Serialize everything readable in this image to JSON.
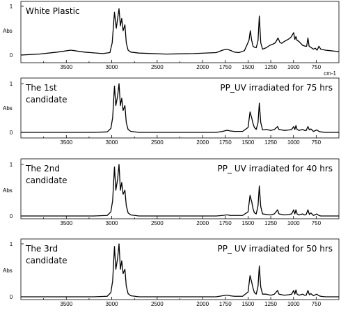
{
  "chart_data": [
    {
      "type": "line",
      "title_lines": [
        "White Plastic"
      ],
      "annotation": "",
      "ylabel": "Abs",
      "yticks": [
        "0",
        "1"
      ],
      "xticks": [
        3500,
        3000,
        2500,
        2000,
        1750,
        1500,
        1250,
        1000,
        750
      ],
      "xunit": "cm-1",
      "xlim": [
        4000,
        500
      ],
      "ylim": [
        0,
        1
      ],
      "x": [
        4000,
        3800,
        3600,
        3450,
        3300,
        3100,
        3020,
        2995,
        2970,
        2950,
        2935,
        2920,
        2905,
        2890,
        2875,
        2855,
        2840,
        2820,
        2790,
        2700,
        2400,
        2100,
        1850,
        1780,
        1735,
        1700,
        1650,
        1600,
        1540,
        1490,
        1475,
        1460,
        1445,
        1430,
        1410,
        1390,
        1376,
        1360,
        1340,
        1300,
        1260,
        1230,
        1200,
        1170,
        1150,
        1130,
        1100,
        1060,
        1030,
        1010,
        998,
        985,
        973,
        960,
        940,
        900,
        870,
        855,
        841,
        828,
        810,
        780,
        760,
        740,
        720,
        700,
        650,
        600,
        550,
        500
      ],
      "y": [
        0.0,
        0.02,
        0.06,
        0.1,
        0.06,
        0.03,
        0.05,
        0.25,
        0.88,
        0.55,
        0.75,
        0.95,
        0.6,
        0.75,
        0.5,
        0.62,
        0.25,
        0.1,
        0.06,
        0.04,
        0.02,
        0.03,
        0.05,
        0.1,
        0.12,
        0.1,
        0.06,
        0.05,
        0.09,
        0.3,
        0.5,
        0.3,
        0.18,
        0.16,
        0.15,
        0.3,
        0.8,
        0.25,
        0.12,
        0.15,
        0.2,
        0.22,
        0.25,
        0.35,
        0.26,
        0.24,
        0.28,
        0.32,
        0.36,
        0.42,
        0.46,
        0.32,
        0.38,
        0.3,
        0.28,
        0.2,
        0.18,
        0.18,
        0.35,
        0.18,
        0.16,
        0.12,
        0.14,
        0.1,
        0.18,
        0.12,
        0.1,
        0.09,
        0.08,
        0.07
      ]
    },
    {
      "type": "line",
      "title_lines": [
        "The 1st",
        "candidate"
      ],
      "annotation": "PP_UV irradiated for 75 hrs",
      "ylabel": "Abs",
      "yticks": [
        "0",
        "1"
      ],
      "xticks": [
        3500,
        3000,
        2500,
        2000,
        1750,
        1500,
        1250,
        1000,
        750
      ],
      "xunit": "",
      "xlim": [
        4000,
        500
      ],
      "ylim": [
        0,
        1
      ],
      "x": [
        4000,
        3800,
        3500,
        3200,
        3050,
        3010,
        2990,
        2970,
        2955,
        2935,
        2920,
        2905,
        2890,
        2875,
        2855,
        2840,
        2820,
        2790,
        2700,
        2400,
        2100,
        1850,
        1780,
        1740,
        1720,
        1700,
        1650,
        1560,
        1500,
        1478,
        1460,
        1445,
        1430,
        1410,
        1390,
        1376,
        1360,
        1340,
        1300,
        1250,
        1210,
        1175,
        1160,
        1130,
        1100,
        1050,
        1020,
        998,
        985,
        973,
        960,
        940,
        900,
        880,
        860,
        841,
        825,
        808,
        780,
        745,
        720,
        700,
        650,
        600,
        550,
        500
      ],
      "y": [
        0.0,
        0.0,
        0.0,
        0.0,
        0.01,
        0.08,
        0.3,
        0.95,
        0.55,
        0.75,
        1.0,
        0.55,
        0.7,
        0.45,
        0.55,
        0.2,
        0.06,
        0.02,
        0.0,
        0.0,
        0.0,
        0.0,
        0.02,
        0.04,
        0.04,
        0.03,
        0.02,
        0.02,
        0.1,
        0.42,
        0.3,
        0.18,
        0.1,
        0.06,
        0.2,
        0.6,
        0.2,
        0.05,
        0.06,
        0.04,
        0.06,
        0.12,
        0.06,
        0.05,
        0.04,
        0.05,
        0.06,
        0.12,
        0.06,
        0.14,
        0.06,
        0.04,
        0.06,
        0.04,
        0.04,
        0.12,
        0.05,
        0.07,
        0.02,
        0.05,
        0.02,
        0.01,
        0.0,
        0.0,
        0.0,
        0.0
      ]
    },
    {
      "type": "line",
      "title_lines": [
        "The 2nd",
        "candidate"
      ],
      "annotation": "PP_ UV irradiated for 40 hrs",
      "ylabel": "Abs",
      "yticks": [
        "0",
        "1"
      ],
      "xticks": [
        3500,
        3000,
        2500,
        2000,
        1750,
        1500,
        1250,
        1000,
        750
      ],
      "xunit": "",
      "xlim": [
        4000,
        500
      ],
      "ylim": [
        0,
        1
      ],
      "x": [
        4000,
        3800,
        3500,
        3200,
        3050,
        3010,
        2990,
        2970,
        2955,
        2935,
        2920,
        2905,
        2890,
        2875,
        2855,
        2840,
        2820,
        2790,
        2700,
        2400,
        2100,
        1850,
        1780,
        1740,
        1720,
        1700,
        1650,
        1560,
        1500,
        1478,
        1460,
        1445,
        1430,
        1410,
        1390,
        1376,
        1360,
        1340,
        1300,
        1250,
        1210,
        1175,
        1160,
        1130,
        1100,
        1050,
        1020,
        998,
        985,
        973,
        960,
        940,
        900,
        880,
        860,
        841,
        825,
        808,
        780,
        745,
        720,
        700,
        650,
        600,
        550,
        500
      ],
      "y": [
        0.0,
        0.0,
        0.0,
        0.0,
        0.01,
        0.08,
        0.3,
        0.95,
        0.5,
        0.72,
        1.0,
        0.5,
        0.65,
        0.42,
        0.5,
        0.2,
        0.06,
        0.02,
        0.0,
        0.0,
        0.0,
        0.0,
        0.01,
        0.02,
        0.02,
        0.01,
        0.01,
        0.01,
        0.08,
        0.4,
        0.28,
        0.14,
        0.06,
        0.04,
        0.2,
        0.58,
        0.18,
        0.04,
        0.03,
        0.02,
        0.04,
        0.12,
        0.04,
        0.03,
        0.02,
        0.03,
        0.04,
        0.12,
        0.04,
        0.12,
        0.04,
        0.02,
        0.04,
        0.02,
        0.03,
        0.12,
        0.03,
        0.06,
        0.01,
        0.04,
        0.01,
        0.0,
        0.0,
        0.0,
        0.0,
        0.0
      ]
    },
    {
      "type": "line",
      "title_lines": [
        "The 3rd",
        "candidate"
      ],
      "annotation": "PP_ UV irradiated for 50 hrs",
      "ylabel": "Abs",
      "yticks": [
        "0",
        "1"
      ],
      "xticks": [
        3500,
        3000,
        2500,
        2000,
        1750,
        1500,
        1250,
        1000,
        750
      ],
      "xunit": "",
      "xlim": [
        4000,
        500
      ],
      "ylim": [
        0,
        1
      ],
      "x": [
        4000,
        3800,
        3500,
        3200,
        3050,
        3010,
        2990,
        2970,
        2955,
        2935,
        2920,
        2905,
        2890,
        2875,
        2855,
        2840,
        2820,
        2790,
        2700,
        2400,
        2100,
        1850,
        1780,
        1740,
        1720,
        1700,
        1650,
        1560,
        1500,
        1478,
        1460,
        1445,
        1430,
        1410,
        1390,
        1376,
        1360,
        1340,
        1300,
        1250,
        1210,
        1175,
        1160,
        1130,
        1100,
        1050,
        1020,
        998,
        985,
        973,
        960,
        940,
        900,
        880,
        860,
        841,
        825,
        808,
        780,
        745,
        720,
        700,
        650,
        600,
        550,
        500
      ],
      "y": [
        0.0,
        0.0,
        0.0,
        0.0,
        0.01,
        0.08,
        0.3,
        0.95,
        0.52,
        0.73,
        1.0,
        0.52,
        0.68,
        0.44,
        0.52,
        0.2,
        0.06,
        0.02,
        0.0,
        0.0,
        0.0,
        0.0,
        0.02,
        0.03,
        0.03,
        0.02,
        0.01,
        0.01,
        0.09,
        0.4,
        0.28,
        0.16,
        0.08,
        0.05,
        0.2,
        0.58,
        0.18,
        0.05,
        0.05,
        0.03,
        0.05,
        0.12,
        0.05,
        0.04,
        0.03,
        0.04,
        0.05,
        0.12,
        0.05,
        0.13,
        0.05,
        0.03,
        0.05,
        0.03,
        0.03,
        0.12,
        0.04,
        0.06,
        0.02,
        0.05,
        0.02,
        0.01,
        0.0,
        0.0,
        0.0,
        0.0
      ]
    }
  ]
}
